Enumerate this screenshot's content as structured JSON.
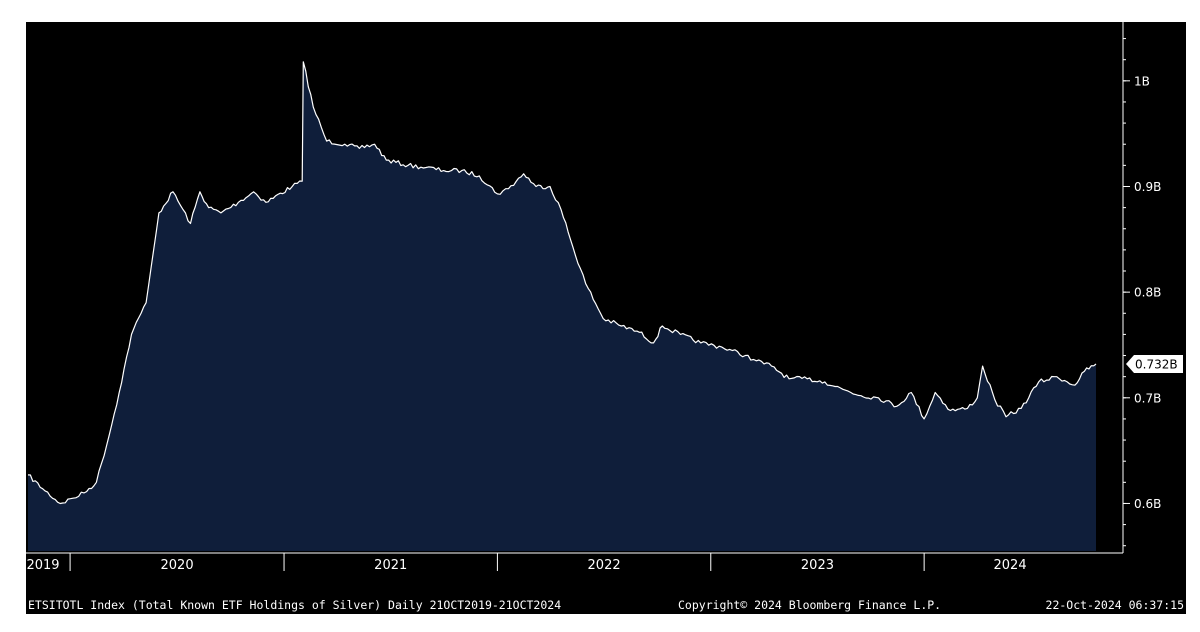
{
  "footer": {
    "description": "ETSITOTL Index (Total Known ETF Holdings of Silver)  Daily 21OCT2019-21OCT2024",
    "copyright": "Copyright© 2024 Bloomberg Finance L.P.",
    "timestamp": "22-Oct-2024 06:37:15"
  },
  "chart_data": {
    "type": "area",
    "title": "",
    "xlabel": "",
    "ylabel": "",
    "x_tick_labels": [
      "2019",
      "2020",
      "2021",
      "2022",
      "2023",
      "2024"
    ],
    "y_tick_labels": [
      "0.6B",
      "0.7B",
      "0.8B",
      "0.9B",
      "1B"
    ],
    "y_tick_values": [
      0.6,
      0.7,
      0.8,
      0.9,
      1.0
    ],
    "ylim": [
      0.555,
      1.05
    ],
    "xlim": [
      "2019-10-21",
      "2024-10-21"
    ],
    "last_value_label": "0.732B",
    "last_value": 0.732,
    "unit": "billion oz",
    "grid": false,
    "colors": {
      "background": "#000000",
      "fill": "#0f1e3a",
      "line": "#ffffff",
      "axis": "#ffffff"
    },
    "series": [
      {
        "x": [
          "2019-10-21",
          "2019-11-15",
          "2019-12-15",
          "2020-01-06",
          "2020-01-25",
          "2020-02-15",
          "2020-03-08",
          "2020-03-25",
          "2020-04-15",
          "2020-05-10",
          "2020-06-01",
          "2020-06-25",
          "2020-07-25",
          "2020-08-10",
          "2020-08-25",
          "2020-09-15",
          "2020-10-15",
          "2020-11-10",
          "2020-12-01",
          "2021-01-15",
          "2021-02-01",
          "2021-02-03",
          "2021-02-20",
          "2021-03-15",
          "2021-04-15",
          "2021-05-10",
          "2021-06-05",
          "2021-06-25",
          "2021-08-01",
          "2021-09-01",
          "2021-10-01",
          "2021-11-01",
          "2021-12-01",
          "2022-01-01",
          "2022-01-20",
          "2022-02-15",
          "2022-03-08",
          "2022-04-01",
          "2022-04-20",
          "2022-05-10",
          "2022-06-01",
          "2022-07-01",
          "2022-08-01",
          "2022-09-01",
          "2022-09-25",
          "2022-10-10",
          "2022-11-10",
          "2022-12-15",
          "2023-01-20",
          "2023-03-01",
          "2023-03-20",
          "2023-04-15",
          "2023-05-15",
          "2023-06-15",
          "2023-07-15",
          "2023-08-15",
          "2023-09-15",
          "2023-10-15",
          "2023-11-15",
          "2023-12-10",
          "2024-01-01",
          "2024-01-20",
          "2024-02-15",
          "2024-03-15",
          "2024-04-01",
          "2024-04-10",
          "2024-05-01",
          "2024-05-20",
          "2024-06-15",
          "2024-07-15",
          "2024-08-15",
          "2024-09-15",
          "2024-10-01",
          "2024-10-21"
        ],
        "values": [
          0.627,
          0.614,
          0.6,
          0.605,
          0.61,
          0.62,
          0.665,
          0.705,
          0.76,
          0.79,
          0.875,
          0.895,
          0.865,
          0.895,
          0.88,
          0.875,
          0.885,
          0.895,
          0.885,
          0.9,
          0.905,
          1.018,
          0.975,
          0.943,
          0.94,
          0.936,
          0.94,
          0.925,
          0.92,
          0.918,
          0.915,
          0.915,
          0.91,
          0.893,
          0.898,
          0.912,
          0.9,
          0.9,
          0.878,
          0.843,
          0.808,
          0.775,
          0.768,
          0.762,
          0.752,
          0.768,
          0.76,
          0.752,
          0.748,
          0.74,
          0.735,
          0.73,
          0.718,
          0.718,
          0.715,
          0.708,
          0.702,
          0.7,
          0.692,
          0.705,
          0.68,
          0.705,
          0.688,
          0.69,
          0.7,
          0.73,
          0.698,
          0.682,
          0.69,
          0.715,
          0.72,
          0.712,
          0.725,
          0.732
        ]
      }
    ]
  }
}
